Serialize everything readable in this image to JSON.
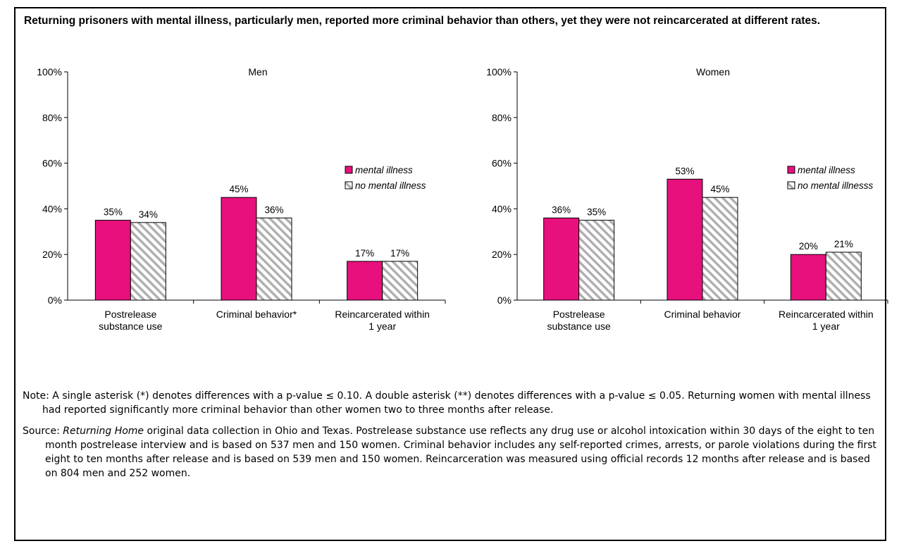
{
  "headline": "Returning prisoners with mental illness, particularly men, reported more criminal behavior than others, yet they were not reincarcerated at different rates.",
  "colors": {
    "mental_illness": "#e8107d",
    "no_mental_illness_fill": "#ffffff",
    "no_mental_illness_hatch": "#b0b0b0"
  },
  "chart_data": [
    {
      "type": "bar",
      "title": "Men",
      "ylim": [
        0,
        100
      ],
      "ytick_labels": [
        "0%",
        "20%",
        "40%",
        "60%",
        "80%",
        "100%"
      ],
      "categories": [
        "Postrelease substance use",
        "Criminal behavior*",
        "Reincarcerated within 1 year"
      ],
      "category_lines": [
        [
          "Postrelease",
          "substance use"
        ],
        [
          "Criminal behavior*"
        ],
        [
          "Reincarcerated within",
          "1 year"
        ]
      ],
      "series": [
        {
          "name": "mental illness",
          "values": [
            35,
            45,
            17
          ],
          "labels": [
            "35%",
            "45%",
            "17%"
          ]
        },
        {
          "name": "no mental illness",
          "values": [
            34,
            36,
            17
          ],
          "labels": [
            "34%",
            "36%",
            "17%"
          ]
        }
      ],
      "legend_position": "right",
      "grid": false
    },
    {
      "type": "bar",
      "title": "Women",
      "ylim": [
        0,
        100
      ],
      "ytick_labels": [
        "0%",
        "20%",
        "40%",
        "60%",
        "80%",
        "100%"
      ],
      "categories": [
        "Postrelease substance use",
        "Criminal behavior",
        "Reincarcerated within 1 year"
      ],
      "category_lines": [
        [
          "Postrelease",
          "substance use"
        ],
        [
          "Criminal behavior"
        ],
        [
          "Reincarcerated within",
          "1 year"
        ]
      ],
      "series": [
        {
          "name": "mental illness",
          "values": [
            36,
            53,
            20
          ],
          "labels": [
            "36%",
            "53%",
            "20%"
          ]
        },
        {
          "name": "no mental illnesss",
          "values": [
            35,
            45,
            21
          ],
          "labels": [
            "35%",
            "45%",
            "21%"
          ]
        }
      ],
      "legend_position": "right",
      "grid": false
    }
  ],
  "notes": {
    "note": "Note: A single asterisk (*) denotes differences with a p-value ≤ 0.10.  A double asterisk (**) denotes differences with a p-value ≤ 0.05. Returning women with mental illness had reported significantly more criminal behavior than other women two to three months after release.",
    "source_prefix": "Source: ",
    "source_italic": "Returning Home",
    "source_rest": " original data collection in Ohio and Texas. Postrelease substance use reflects any drug use or alcohol intoxication within 30 days of the eight to ten month postrelease interview and is based on 537 men and 150 women.  Criminal behavior includes any self-reported crimes, arrests, or parole violations during the first eight to ten months after release and is based on 539 men and 150 women.  Reincarceration was measured using official records 12 months after release and is based on 804 men and 252 women."
  }
}
